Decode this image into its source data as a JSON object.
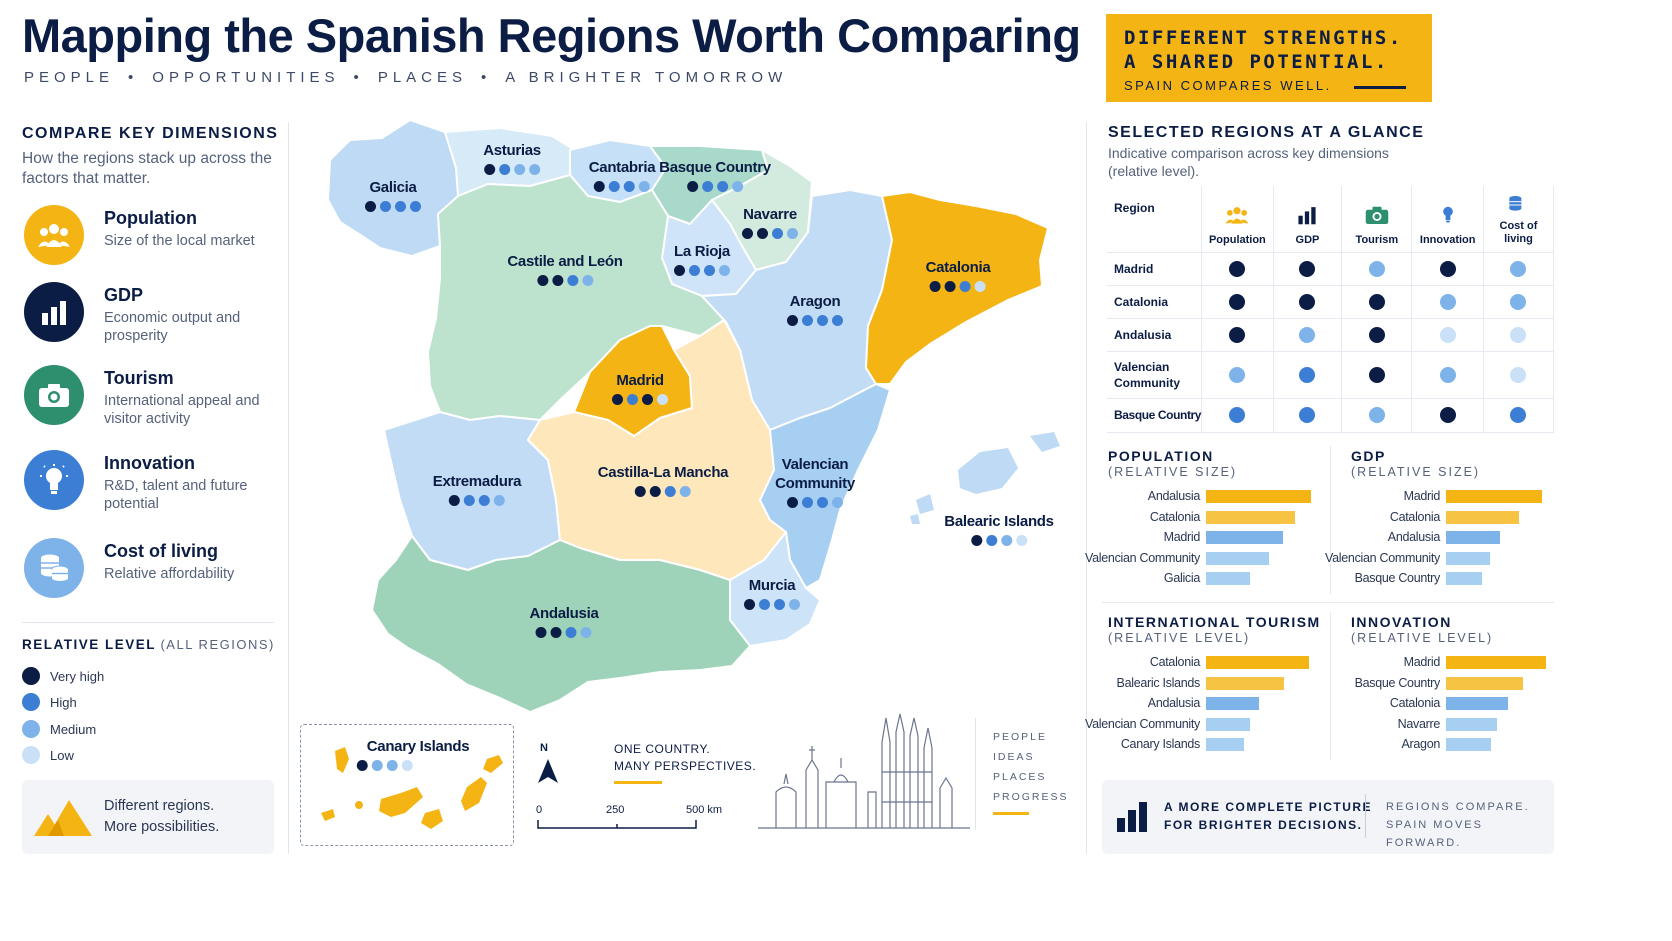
{
  "header": {
    "title": "Mapping the Spanish Regions Worth Comparing",
    "tagline": [
      "PEOPLE",
      "OPPORTUNITIES",
      "PLACES",
      "A BRIGHTER TOMORROW"
    ],
    "promo": {
      "line1": "DIFFERENT STRENGTHS.",
      "line2": "A SHARED POTENTIAL.",
      "line3": "SPAIN COMPARES WELL."
    }
  },
  "colors": {
    "navy": "#0b1d45",
    "very_high": "#0b1d45",
    "high": "#3c7ed4",
    "medium": "#7eb3ea",
    "low": "#c9e0f7",
    "accent": "#f4b414"
  },
  "dimensions": {
    "title": "COMPARE KEY DIMENSIONS",
    "subtitle": "How the regions stack up across the factors that matter.",
    "items": [
      {
        "name": "Population",
        "desc": "Size of the local market",
        "icon": "people-icon",
        "color": "#f4b414"
      },
      {
        "name": "GDP",
        "desc": "Economic output and prosperity",
        "icon": "bar-chart-icon",
        "color": "#0b1d45"
      },
      {
        "name": "Tourism",
        "desc": "International appeal and visitor activity",
        "icon": "camera-icon",
        "color": "#2e8f6e"
      },
      {
        "name": "Innovation",
        "desc": "R&D, talent and future potential",
        "icon": "lightbulb-icon",
        "color": "#3c7ed4"
      },
      {
        "name": "Cost of living",
        "desc": "Relative affordability",
        "icon": "coins-icon",
        "color": "#7eb3ea"
      }
    ]
  },
  "legend": {
    "title": "RELATIVE LEVEL",
    "title_note": "(ALL REGIONS)",
    "items": [
      {
        "label": "Very high",
        "color": "#0b1d45"
      },
      {
        "label": "High",
        "color": "#3c7ed4"
      },
      {
        "label": "Medium",
        "color": "#7eb3ea"
      },
      {
        "label": "Low",
        "color": "#c9e0f7"
      }
    ]
  },
  "bottom_left": {
    "line1": "Different regions.",
    "line2": "More possibilities."
  },
  "map": {
    "regions": [
      {
        "name": "Galicia",
        "levels": [
          4,
          3,
          3,
          3
        ]
      },
      {
        "name": "Asturias",
        "levels": [
          4,
          3,
          2,
          2
        ]
      },
      {
        "name": "Cantabria",
        "levels": [
          4,
          3,
          3,
          2
        ]
      },
      {
        "name": "Basque Country",
        "levels": [
          4,
          3,
          3,
          2
        ]
      },
      {
        "name": "Navarre",
        "levels": [
          4,
          4,
          3,
          2
        ]
      },
      {
        "name": "La Rioja",
        "levels": [
          4,
          3,
          3,
          2
        ]
      },
      {
        "name": "Castile and León",
        "levels": [
          4,
          4,
          3,
          2
        ]
      },
      {
        "name": "Aragon",
        "levels": [
          4,
          3,
          3,
          3
        ]
      },
      {
        "name": "Catalonia",
        "levels": [
          4,
          4,
          3,
          1
        ]
      },
      {
        "name": "Madrid",
        "levels": [
          4,
          3,
          4,
          1
        ]
      },
      {
        "name": "Extremadura",
        "levels": [
          4,
          3,
          3,
          2
        ]
      },
      {
        "name": "Castilla-La Mancha",
        "levels": [
          4,
          4,
          3,
          2
        ]
      },
      {
        "name": "Valencian Community",
        "levels": [
          4,
          3,
          3,
          2
        ]
      },
      {
        "name": "Balearic Islands",
        "levels": [
          4,
          3,
          2,
          1
        ]
      },
      {
        "name": "Murcia",
        "levels": [
          4,
          3,
          3,
          2
        ]
      },
      {
        "name": "Andalusia",
        "levels": [
          4,
          4,
          3,
          2
        ]
      },
      {
        "name": "Canary Islands",
        "levels": [
          4,
          2,
          2,
          1
        ]
      }
    ],
    "compass": "N",
    "scale": [
      "0",
      "250",
      "500 km"
    ],
    "motto": {
      "line1": "ONE COUNTRY.",
      "line2": "MANY PERSPECTIVES."
    },
    "side_words": [
      "PEOPLE",
      "IDEAS",
      "PLACES",
      "PROGRESS"
    ]
  },
  "glance": {
    "title": "SELECTED REGIONS AT A GLANCE",
    "subtitle": "Indicative comparison across key dimensions (relative level).",
    "header": [
      "Region",
      "Population",
      "GDP",
      "Tourism",
      "Innovation",
      "Cost of living"
    ],
    "rows": [
      {
        "region": "Madrid",
        "levels": [
          4,
          4,
          2,
          4,
          2
        ]
      },
      {
        "region": "Catalonia",
        "levels": [
          4,
          4,
          4,
          2,
          2
        ]
      },
      {
        "region": "Andalusia",
        "levels": [
          4,
          2,
          4,
          1,
          1
        ]
      },
      {
        "region": "Valencian Community",
        "levels": [
          2,
          3,
          4,
          2,
          1
        ]
      },
      {
        "region": "Basque Country",
        "levels": [
          3,
          3,
          2,
          4,
          3
        ]
      }
    ]
  },
  "chart_data": [
    {
      "type": "bar",
      "title": "POPULATION",
      "subtitle": "(RELATIVE SIZE)",
      "categories": [
        "Andalusia",
        "Catalonia",
        "Madrid",
        "Valencian Community",
        "Galicia"
      ],
      "values": [
        100,
        85,
        73,
        60,
        42
      ]
    },
    {
      "type": "bar",
      "title": "GDP",
      "subtitle": "(RELATIVE SIZE)",
      "categories": [
        "Madrid",
        "Catalonia",
        "Andalusia",
        "Valencian Community",
        "Basque Country"
      ],
      "values": [
        100,
        76,
        56,
        46,
        38
      ]
    },
    {
      "type": "bar",
      "title": "INTERNATIONAL TOURISM",
      "subtitle": "(RELATIVE LEVEL)",
      "categories": [
        "Catalonia",
        "Balearic Islands",
        "Andalusia",
        "Valencian Community",
        "Canary Islands"
      ],
      "values": [
        100,
        76,
        51,
        43,
        37
      ]
    },
    {
      "type": "bar",
      "title": "INNOVATION",
      "subtitle": "(RELATIVE LEVEL)",
      "categories": [
        "Madrid",
        "Basque Country",
        "Catalonia",
        "Navarre",
        "Aragon"
      ],
      "values": [
        100,
        77,
        62,
        51,
        45
      ]
    }
  ],
  "bottom_right": {
    "line1": "A MORE COMPLETE PICTURE",
    "line2": "FOR BRIGHTER DECISIONS.",
    "line3": "REGIONS COMPARE.",
    "line4": "SPAIN MOVES FORWARD."
  }
}
